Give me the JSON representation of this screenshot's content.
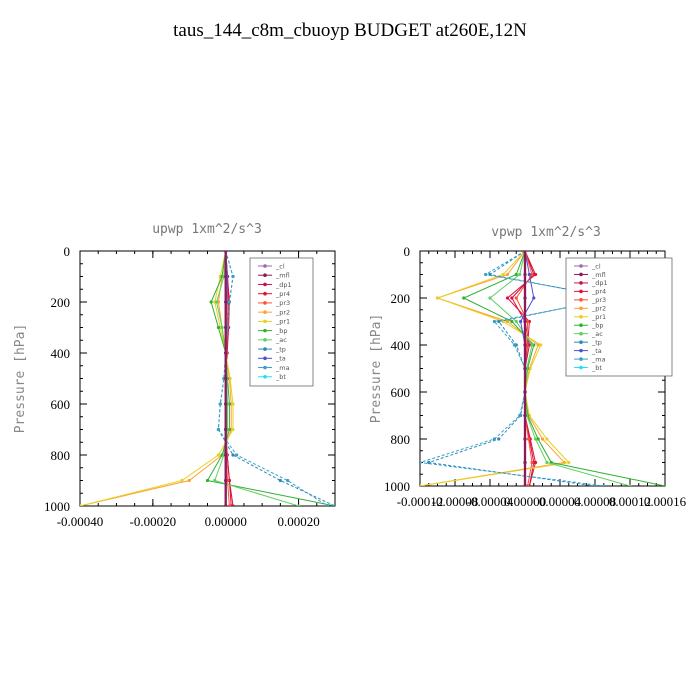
{
  "title": "taus_144_c8m_cbuoyp  BUDGET at260E,12N",
  "legend_series": [
    "_cl",
    "_mfl",
    "_dp1",
    "_pr4",
    "_pr3",
    "_pr2",
    "_pr1",
    "_bp",
    "_ac",
    "_tp",
    "_ta",
    "_ma",
    "_bt"
  ],
  "series_colors": {
    "_cl": "#9a6aa8",
    "_mfl": "#8b1a5a",
    "_dp1": "#c8104a",
    "_pr4": "#e0103a",
    "_pr3": "#ff5030",
    "_pr2": "#ffa030",
    "_pr1": "#e8d020",
    "_bp": "#30b030",
    "_ac": "#60d060",
    "_tp": "#2a8ab8",
    "_ta": "#5050d0",
    "_ma": "#3aa0c8",
    "_bt": "#20e0f0"
  },
  "chart_data": [
    {
      "type": "line",
      "title": "upwp   1xm^2/s^3",
      "ylabel": "Pressure [hPa]",
      "xlim": [
        -0.0004,
        0.0003
      ],
      "ylim": [
        1000,
        0
      ],
      "xticks": [
        -0.0004,
        -0.0002,
        0.0,
        0.0002
      ],
      "xtick_labels": [
        "-0.00040",
        "-0.00020",
        "0.00000",
        "0.00020"
      ],
      "yticks": [
        0,
        200,
        400,
        600,
        800,
        1000
      ],
      "legend_placement": "top-right",
      "series": [
        {
          "name": "_cl",
          "x": [
            0,
            0,
            0,
            0,
            0,
            0,
            0,
            0,
            0,
            0,
            0
          ],
          "y": [
            0,
            100,
            200,
            300,
            400,
            500,
            600,
            700,
            800,
            900,
            1000
          ]
        },
        {
          "name": "_mfl",
          "x": [
            0,
            0,
            0,
            0,
            0,
            0,
            0,
            0,
            0,
            0,
            0
          ],
          "y": [
            0,
            100,
            200,
            300,
            400,
            500,
            600,
            700,
            800,
            900,
            1000
          ]
        },
        {
          "name": "_dp1",
          "x": [
            0,
            5e-06,
            8e-06,
            5e-06,
            3e-06,
            0,
            0,
            0,
            4e-06,
            1e-05,
            2e-05
          ],
          "y": [
            0,
            100,
            200,
            300,
            400,
            500,
            600,
            700,
            800,
            900,
            1000
          ]
        },
        {
          "name": "_pr4",
          "x": [
            0,
            5e-06,
            1e-05,
            8e-06,
            4e-06,
            2e-06,
            0,
            0,
            4e-06,
            1e-05,
            1.5e-05
          ],
          "y": [
            0,
            100,
            200,
            300,
            400,
            500,
            600,
            700,
            800,
            900,
            1000
          ]
        },
        {
          "name": "_pr3",
          "x": [
            0,
            3e-06,
            6e-06,
            4e-06,
            2e-06,
            0,
            0,
            0,
            2e-06,
            5e-06,
            1e-05
          ],
          "y": [
            0,
            100,
            200,
            300,
            400,
            500,
            600,
            700,
            800,
            900,
            1000
          ]
        },
        {
          "name": "_pr2",
          "x": [
            0,
            -1e-05,
            -2e-05,
            -1e-05,
            0,
            1e-05,
            1.5e-05,
            1.5e-05,
            -1e-05,
            -0.0001,
            -0.0004
          ],
          "y": [
            0,
            100,
            200,
            300,
            400,
            500,
            600,
            700,
            800,
            900,
            1000
          ]
        },
        {
          "name": "_pr1",
          "x": [
            0,
            -1.5e-05,
            -3e-05,
            -1.5e-05,
            0,
            1.2e-05,
            2e-05,
            2e-05,
            -2e-05,
            -0.00012,
            -0.0004
          ],
          "y": [
            0,
            100,
            200,
            300,
            400,
            500,
            600,
            700,
            800,
            900,
            1000
          ]
        },
        {
          "name": "_bp",
          "x": [
            0,
            -1e-05,
            -4e-05,
            -2e-05,
            0,
            5e-06,
            1e-05,
            1e-05,
            -1e-05,
            -5e-05,
            0.0003
          ],
          "y": [
            0,
            100,
            200,
            300,
            400,
            500,
            600,
            700,
            800,
            900,
            1000
          ]
        },
        {
          "name": "_ac",
          "x": [
            0,
            -5e-06,
            -2.5e-05,
            -1e-05,
            0,
            3e-06,
            5e-06,
            5e-06,
            -5e-06,
            -3e-05,
            0.0002
          ],
          "y": [
            0,
            100,
            200,
            300,
            400,
            500,
            600,
            700,
            800,
            900,
            1000
          ]
        },
        {
          "name": "_tp",
          "x": [
            0,
            2e-05,
            1e-05,
            5e-06,
            0,
            -5e-06,
            -1.5e-05,
            -2e-05,
            2e-05,
            0.00015,
            0.0003
          ],
          "y": [
            0,
            100,
            200,
            300,
            400,
            500,
            600,
            700,
            800,
            900,
            1000
          ]
        },
        {
          "name": "_ta",
          "x": [
            0,
            5e-06,
            3e-06,
            0,
            0,
            0,
            0,
            0,
            0,
            0,
            0
          ],
          "y": [
            0,
            100,
            200,
            300,
            400,
            500,
            600,
            700,
            800,
            900,
            1000
          ]
        },
        {
          "name": "_ma",
          "x": [
            0,
            2e-05,
            1e-05,
            5e-06,
            0,
            -5e-06,
            -1.5e-05,
            -2e-05,
            3e-05,
            0.00017,
            0.00028
          ],
          "y": [
            0,
            100,
            200,
            300,
            400,
            500,
            600,
            700,
            800,
            900,
            1000
          ]
        },
        {
          "name": "_bt",
          "x": [
            0,
            0,
            0,
            0,
            0,
            0,
            0,
            0,
            0,
            0,
            0
          ],
          "y": [
            0,
            100,
            200,
            300,
            400,
            500,
            600,
            700,
            800,
            900,
            1000
          ]
        }
      ]
    },
    {
      "type": "line",
      "title": "vpwp   1xm^2/s^3",
      "ylabel": "Pressure [hPa]",
      "xlim": [
        -0.00012,
        0.00016
      ],
      "ylim": [
        1000,
        0
      ],
      "xticks": [
        -0.00012,
        -8e-05,
        -4e-05,
        0.0,
        4e-05,
        8e-05,
        0.00012,
        0.00016
      ],
      "xtick_labels": [
        "-0.00012",
        "-0.00008",
        "-0.00004",
        "0.00000",
        "0.00004",
        "0.00008",
        "0.00012",
        "0.00016"
      ],
      "yticks": [
        0,
        200,
        400,
        600,
        800,
        1000
      ],
      "legend_placement": "top-right",
      "series": [
        {
          "name": "_cl",
          "x": [
            0,
            0,
            0,
            0,
            0,
            0,
            0,
            0,
            0,
            0,
            0
          ],
          "y": [
            0,
            100,
            200,
            300,
            400,
            500,
            600,
            700,
            800,
            900,
            1000
          ]
        },
        {
          "name": "_mfl",
          "x": [
            0,
            0,
            0,
            0,
            0,
            0,
            0,
            0,
            0,
            0,
            0
          ],
          "y": [
            0,
            100,
            200,
            300,
            400,
            500,
            600,
            700,
            800,
            900,
            1000
          ]
        },
        {
          "name": "_dp1",
          "x": [
            0,
            1e-05,
            -1.5e-05,
            0,
            5e-06,
            0,
            0,
            0,
            5e-06,
            1e-05,
            5e-06
          ],
          "y": [
            0,
            100,
            200,
            300,
            400,
            500,
            600,
            700,
            800,
            900,
            1000
          ]
        },
        {
          "name": "_pr4",
          "x": [
            0,
            1.2e-05,
            -2e-05,
            5e-06,
            3e-06,
            0,
            0,
            0,
            6e-06,
            1.2e-05,
            5e-06
          ],
          "y": [
            0,
            100,
            200,
            300,
            400,
            500,
            600,
            700,
            800,
            900,
            1000
          ]
        },
        {
          "name": "_pr3",
          "x": [
            0,
            8e-06,
            -1e-05,
            3e-06,
            2e-06,
            0,
            0,
            0,
            4e-06,
            8e-06,
            3e-06
          ],
          "y": [
            0,
            100,
            200,
            300,
            400,
            500,
            600,
            700,
            800,
            900,
            1000
          ]
        },
        {
          "name": "_pr2",
          "x": [
            0,
            -2e-05,
            -0.0001,
            -2e-05,
            1.5e-05,
            5e-06,
            0,
            4e-06,
            2e-05,
            4.5e-05,
            -0.00012
          ],
          "y": [
            0,
            100,
            200,
            300,
            400,
            500,
            600,
            700,
            800,
            900,
            1000
          ]
        },
        {
          "name": "_pr1",
          "x": [
            0,
            -2.5e-05,
            -0.0001,
            -2.5e-05,
            1.8e-05,
            6e-06,
            0,
            5e-06,
            2.5e-05,
            5e-05,
            -0.00012
          ],
          "y": [
            0,
            100,
            200,
            300,
            400,
            500,
            600,
            700,
            800,
            900,
            1000
          ]
        },
        {
          "name": "_bp",
          "x": [
            0,
            -1e-05,
            -7e-05,
            -1.5e-05,
            1e-05,
            3e-06,
            0,
            3e-06,
            1.5e-05,
            3e-05,
            0.00016
          ],
          "y": [
            0,
            100,
            200,
            300,
            400,
            500,
            600,
            700,
            800,
            900,
            1000
          ]
        },
        {
          "name": "_ac",
          "x": [
            0,
            -6e-06,
            -4e-05,
            -1e-05,
            8e-06,
            2e-06,
            0,
            2e-06,
            1.2e-05,
            2.5e-05,
            0.00012
          ],
          "y": [
            0,
            100,
            200,
            300,
            400,
            500,
            600,
            700,
            800,
            900,
            1000
          ]
        },
        {
          "name": "_tp",
          "x": [
            0,
            -4e-05,
            0.0001,
            -3e-05,
            -1e-05,
            0,
            0,
            -5e-06,
            -3e-05,
            -0.00011,
            8e-05
          ],
          "y": [
            0,
            100,
            200,
            300,
            400,
            500,
            600,
            700,
            800,
            900,
            1000
          ]
        },
        {
          "name": "_ta",
          "x": [
            0,
            5e-06,
            1e-05,
            -5e-06,
            0,
            0,
            0,
            0,
            0,
            0,
            0
          ],
          "y": [
            0,
            100,
            200,
            300,
            400,
            500,
            600,
            700,
            800,
            900,
            1000
          ]
        },
        {
          "name": "_ma",
          "x": [
            0,
            -4.5e-05,
            0.000105,
            -3.5e-05,
            -1.2e-05,
            0,
            0,
            -6e-06,
            -3.5e-05,
            -0.00012,
            9e-05
          ],
          "y": [
            0,
            100,
            200,
            300,
            400,
            500,
            600,
            700,
            800,
            900,
            1000
          ]
        },
        {
          "name": "_bt",
          "x": [
            0,
            0,
            0,
            0,
            0,
            0,
            0,
            0,
            0,
            0,
            0
          ],
          "y": [
            0,
            100,
            200,
            300,
            400,
            500,
            600,
            700,
            800,
            900,
            1000
          ]
        }
      ]
    }
  ]
}
